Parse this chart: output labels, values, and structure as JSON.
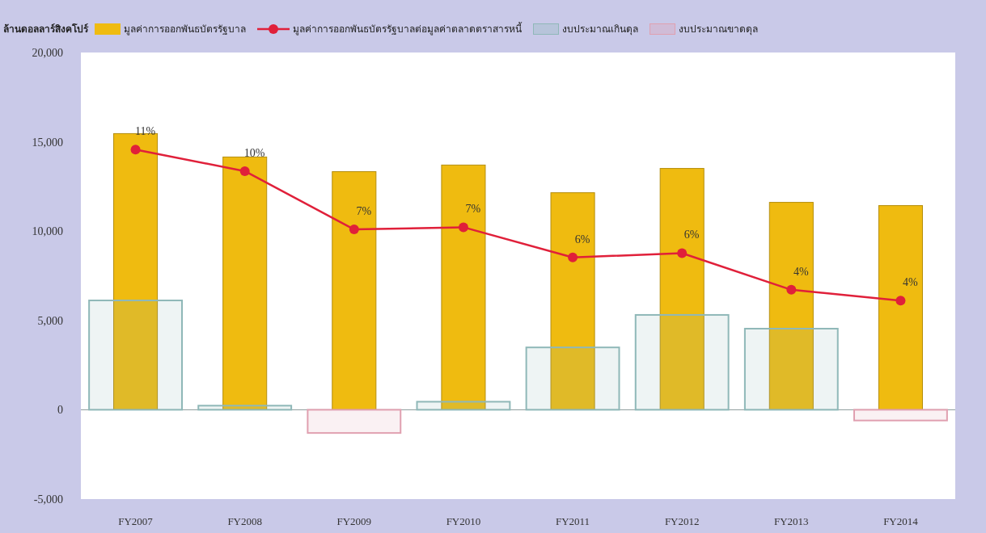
{
  "chart_data": {
    "type": "bar",
    "ylabel": "ล้านดอลลาร์สิงคโปร์",
    "categories": [
      "FY2007",
      "FY2008",
      "FY2009",
      "FY2010",
      "FY2011",
      "FY2012",
      "FY2013",
      "FY2014"
    ],
    "series": [
      {
        "name": "มูลค่าการออกพันธบัตรรัฐบาล",
        "color": "#efbb10",
        "values": [
          15460,
          14150,
          13330,
          13700,
          12150,
          13510,
          11610,
          11430
        ]
      },
      {
        "name": "มูลค่าการออกพันธบัตรรัฐบาลต่อมูลค่าตลาดตราสารหนี้",
        "type": "line",
        "axis": "y2",
        "color": "#e0203a",
        "marker": "circle",
        "values": [
          11,
          10,
          7.3,
          7.4,
          6,
          6.2,
          4.5,
          4
        ],
        "value_labels": [
          "11%",
          "10%",
          "7%",
          "7%",
          "6%",
          "6%",
          "4%",
          "4%"
        ]
      },
      {
        "name": "งบประมาณเกินดุล",
        "type": "bar",
        "color": "#8fb8b8",
        "values": [
          6120,
          230,
          null,
          450,
          3490,
          5310,
          4540,
          null
        ]
      },
      {
        "name": "งบประมาณขาดดุล",
        "type": "bar",
        "color": "#e0a0b0",
        "values": [
          null,
          null,
          -1300,
          null,
          null,
          null,
          null,
          -600
        ]
      }
    ],
    "ylim": [
      -5000,
      20000
    ],
    "yticks": [
      {
        "value": -5000,
        "label": "-5,000"
      },
      {
        "value": 0,
        "label": "0"
      },
      {
        "value": 5000,
        "label": "5,000"
      },
      {
        "value": 10000,
        "label": "10,000"
      },
      {
        "value": 15000,
        "label": "15,000"
      },
      {
        "value": 20000,
        "label": "20,000"
      }
    ],
    "y2lim": [
      -5.2,
      15.5
    ],
    "legend": "top"
  }
}
